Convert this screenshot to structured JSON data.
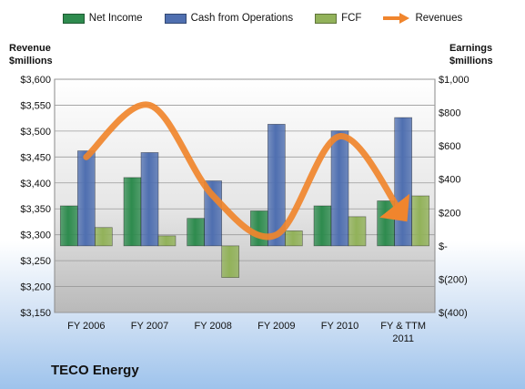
{
  "chart_data": {
    "type": "bar",
    "title": "",
    "categories": [
      "FY 2006",
      "FY 2007",
      "FY 2008",
      "FY 2009",
      "FY 2010",
      "FY & TTM 2011"
    ],
    "left_axis": {
      "label_line1": "Revenue",
      "label_line2": "$millions",
      "ylim": [
        3150,
        3600
      ],
      "ticks": [
        "$3,150",
        "$3,200",
        "$3,250",
        "$3,300",
        "$3,350",
        "$3,400",
        "$3,450",
        "$3,500",
        "$3,550",
        "$3,600"
      ],
      "tick_values": [
        3150,
        3200,
        3250,
        3300,
        3350,
        3400,
        3450,
        3500,
        3550,
        3600
      ]
    },
    "right_axis": {
      "label_line1": "Earnings",
      "label_line2": "$millions",
      "ylim": [
        -400,
        1000
      ],
      "ticks": [
        "$(400)",
        "$(200)",
        "$-",
        "$200",
        "$400",
        "$600",
        "$800",
        "$1,000"
      ],
      "tick_values": [
        -400,
        -200,
        0,
        200,
        400,
        600,
        800,
        1000
      ]
    },
    "series": [
      {
        "name": "Net Income",
        "axis": "right",
        "kind": "bar",
        "color": "#2e8b4e",
        "values": [
          240,
          410,
          165,
          210,
          240,
          270
        ]
      },
      {
        "name": "Cash from Operations",
        "axis": "right",
        "kind": "bar",
        "color": "#4f6fb0",
        "values": [
          570,
          560,
          390,
          730,
          690,
          770
        ]
      },
      {
        "name": "FCF",
        "axis": "right",
        "kind": "bar",
        "color": "#92b25a",
        "values": [
          110,
          60,
          -190,
          90,
          175,
          300
        ]
      },
      {
        "name": "Revenues",
        "axis": "left",
        "kind": "line",
        "color": "#f0852d",
        "values": [
          3450,
          3550,
          3375,
          3300,
          3490,
          3335
        ]
      }
    ],
    "grid": true,
    "legend_position": "top"
  },
  "company": "TECO Energy"
}
